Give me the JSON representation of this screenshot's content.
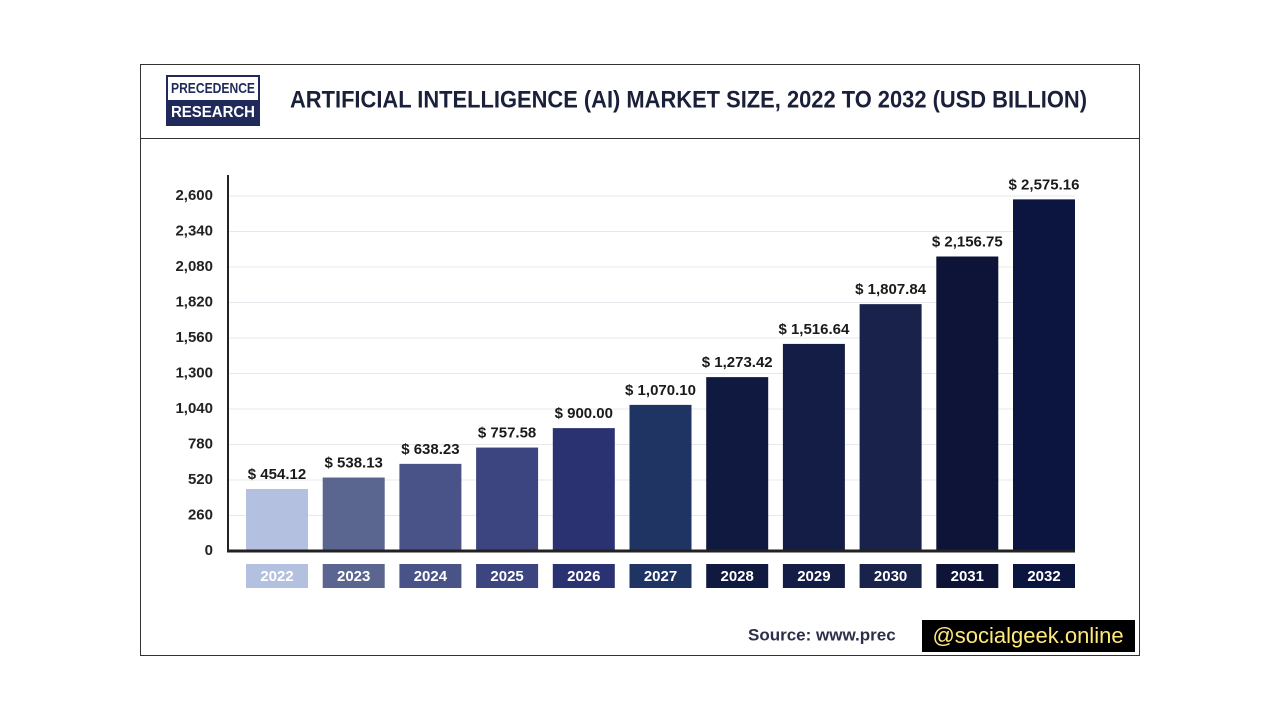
{
  "chart_data": {
    "type": "bar",
    "logo": {
      "top": "PRECEDENCE",
      "bottom": "RESEARCH"
    },
    "title": "ARTIFICIAL INTELLIGENCE (AI) MARKET SIZE, 2022 TO 2032 (USD BILLION)",
    "categories": [
      "2022",
      "2023",
      "2024",
      "2025",
      "2026",
      "2027",
      "2028",
      "2029",
      "2030",
      "2031",
      "2032"
    ],
    "values": [
      454.12,
      538.13,
      638.23,
      757.58,
      900.0,
      1070.1,
      1273.42,
      1516.64,
      1807.84,
      2156.75,
      2575.16
    ],
    "value_labels": [
      "$ 454.12",
      "$ 538.13",
      "$ 638.23",
      "$ 757.58",
      "$ 900.00",
      "$ 1,070.10",
      "$ 1,273.42",
      "$ 1,516.64",
      "$ 1,807.84",
      "$ 2,156.75",
      "$ 2,575.16"
    ],
    "colors": [
      "#b4c0e0",
      "#5a6590",
      "#4a5388",
      "#3d4580",
      "#2b3272",
      "#1f3463",
      "#101a40",
      "#141d45",
      "#18224a",
      "#0e1438",
      "#0c1440"
    ],
    "ylim": [
      0,
      2750
    ],
    "yticks": [
      0,
      260,
      520,
      780,
      {
        "value": 1040,
        "label": "1,040"
      },
      {
        "value": 1300,
        "label": "1,300"
      },
      {
        "value": 1560,
        "label": "1,560"
      },
      {
        "value": 1820,
        "label": "1,820"
      },
      {
        "value": 2080,
        "label": "2,080"
      },
      {
        "value": 2340,
        "label": "2,340"
      },
      {
        "value": 2600,
        "label": "2,600"
      }
    ],
    "grid": true,
    "source": "Source: www.prec",
    "watermark": "@socialgeek.online"
  }
}
